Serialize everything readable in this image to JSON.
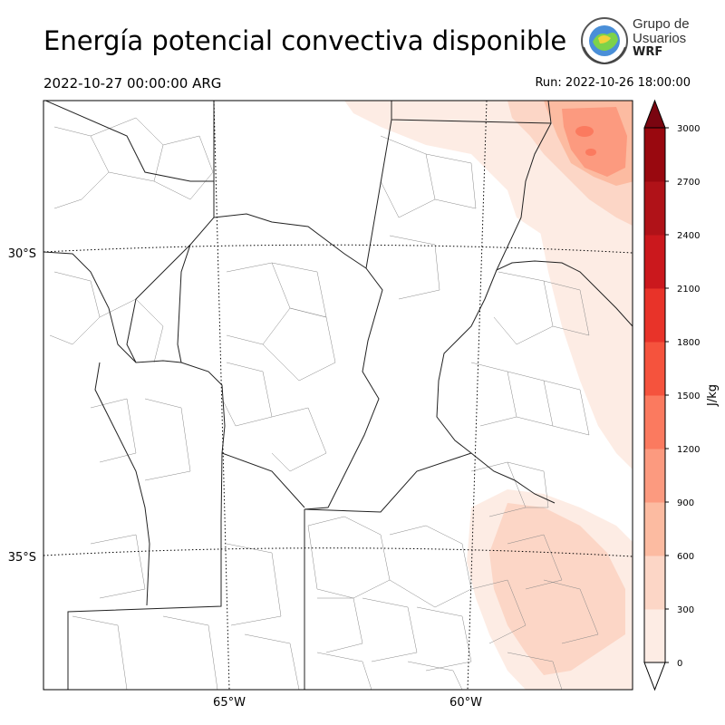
{
  "title": "Energía potencial convectiva disponible",
  "valid_time": "2022-10-27 00:00:00 ARG",
  "run_time": "Run: 2022-10-26 18:00:00",
  "logo": {
    "line1": "Grupo de",
    "line2": "Usuarios",
    "line3": "WRF"
  },
  "map": {
    "lat_labels": [
      "30°S",
      "35°S"
    ],
    "lon_labels": [
      "65°W",
      "60°W"
    ]
  },
  "colorbar": {
    "label": "J/kg",
    "ticks": [
      "0",
      "300",
      "600",
      "900",
      "1200",
      "1500",
      "1800",
      "2100",
      "2400",
      "2700",
      "3000"
    ],
    "colors": [
      "#fdece4",
      "#fcd6c6",
      "#fcbba1",
      "#fc9a7f",
      "#fb7a5f",
      "#f5533d",
      "#e83329",
      "#cb181d",
      "#b01218",
      "#99080f",
      "#7a0510"
    ]
  }
}
